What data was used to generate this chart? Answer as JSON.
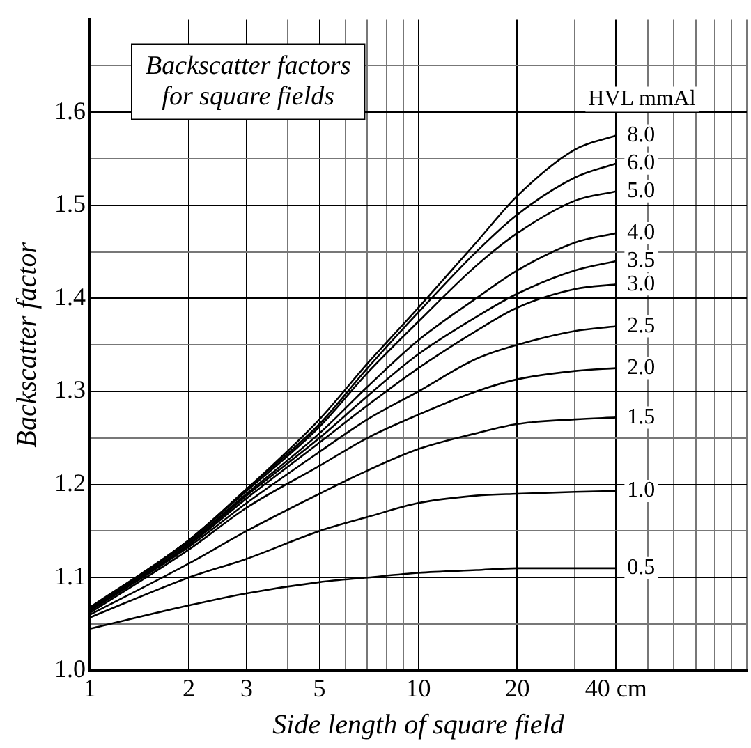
{
  "chart_data": {
    "type": "line",
    "title": "Backscatter factors\nfor square fields",
    "xlabel": "Side length of square field",
    "ylabel": "Backscatter factor",
    "legend_title": "HVL mmAl",
    "x": [
      1,
      2,
      3,
      5,
      7,
      10,
      15,
      20,
      30,
      40
    ],
    "series": [
      {
        "name": "8.0",
        "color": "#000000",
        "values": [
          1.068,
          1.14,
          1.195,
          1.27,
          1.33,
          1.39,
          1.46,
          1.51,
          1.56,
          1.575
        ]
      },
      {
        "name": "6.0",
        "color": "#000000",
        "values": [
          1.067,
          1.14,
          1.195,
          1.265,
          1.325,
          1.385,
          1.45,
          1.49,
          1.53,
          1.545
        ]
      },
      {
        "name": "5.0",
        "color": "#000000",
        "values": [
          1.066,
          1.14,
          1.193,
          1.262,
          1.32,
          1.375,
          1.435,
          1.47,
          1.505,
          1.515
        ]
      },
      {
        "name": "4.0",
        "color": "#000000",
        "values": [
          1.066,
          1.138,
          1.19,
          1.255,
          1.305,
          1.355,
          1.4,
          1.43,
          1.46,
          1.47
        ]
      },
      {
        "name": "3.5",
        "color": "#000000",
        "values": [
          1.065,
          1.136,
          1.188,
          1.25,
          1.295,
          1.34,
          1.38,
          1.405,
          1.43,
          1.44
        ]
      },
      {
        "name": "3.0",
        "color": "#000000",
        "values": [
          1.065,
          1.135,
          1.185,
          1.245,
          1.285,
          1.325,
          1.365,
          1.39,
          1.41,
          1.415
        ]
      },
      {
        "name": "2.5",
        "color": "#000000",
        "values": [
          1.064,
          1.133,
          1.18,
          1.235,
          1.27,
          1.3,
          1.335,
          1.35,
          1.365,
          1.37
        ]
      },
      {
        "name": "2.0",
        "color": "#000000",
        "values": [
          1.062,
          1.13,
          1.175,
          1.22,
          1.25,
          1.275,
          1.3,
          1.313,
          1.322,
          1.325
        ]
      },
      {
        "name": "1.5",
        "color": "#000000",
        "values": [
          1.06,
          1.115,
          1.15,
          1.19,
          1.215,
          1.238,
          1.255,
          1.265,
          1.27,
          1.272
        ]
      },
      {
        "name": "1.0",
        "color": "#000000",
        "values": [
          1.057,
          1.1,
          1.12,
          1.15,
          1.165,
          1.18,
          1.188,
          1.19,
          1.192,
          1.193
        ]
      },
      {
        "name": "0.5",
        "color": "#000000",
        "values": [
          1.045,
          1.07,
          1.083,
          1.095,
          1.1,
          1.105,
          1.108,
          1.11,
          1.11,
          1.11
        ]
      }
    ],
    "log": "x",
    "xlim": [
      1,
      100
    ],
    "xticks": [
      1,
      2,
      3,
      {
        "value": 4,
        "label": null
      },
      5,
      {
        "value": 6,
        "label": null
      },
      {
        "value": 7,
        "label": null
      },
      {
        "value": 8,
        "label": null
      },
      {
        "value": 9,
        "label": null
      },
      10,
      20,
      {
        "value": 30,
        "label": null
      },
      {
        "value": 40,
        "label": "40 cm"
      },
      {
        "value": 50,
        "label": null
      },
      {
        "value": 60,
        "label": null
      },
      {
        "value": 70,
        "label": null
      },
      {
        "value": 80,
        "label": null
      },
      {
        "value": 90,
        "label": null
      },
      {
        "value": 100,
        "label": null
      }
    ],
    "ylim": [
      1.0,
      1.7
    ],
    "yticks": [
      {
        "value": 1.0,
        "label": "1.0"
      },
      {
        "value": 1.05,
        "label": null
      },
      {
        "value": 1.1,
        "label": "1.1"
      },
      {
        "value": 1.15,
        "label": null
      },
      {
        "value": 1.2,
        "label": "1.2"
      },
      {
        "value": 1.25,
        "label": null
      },
      {
        "value": 1.3,
        "label": "1.3"
      },
      {
        "value": 1.35,
        "label": null
      },
      {
        "value": 1.4,
        "label": "1.4"
      },
      {
        "value": 1.45,
        "label": null
      },
      {
        "value": 1.5,
        "label": "1.5"
      },
      {
        "value": 1.55,
        "label": null
      },
      {
        "value": 1.6,
        "label": "1.6"
      },
      {
        "value": 1.65,
        "label": null
      }
    ],
    "grid": true,
    "legend": false,
    "marker": "none",
    "line_style": "solid"
  }
}
